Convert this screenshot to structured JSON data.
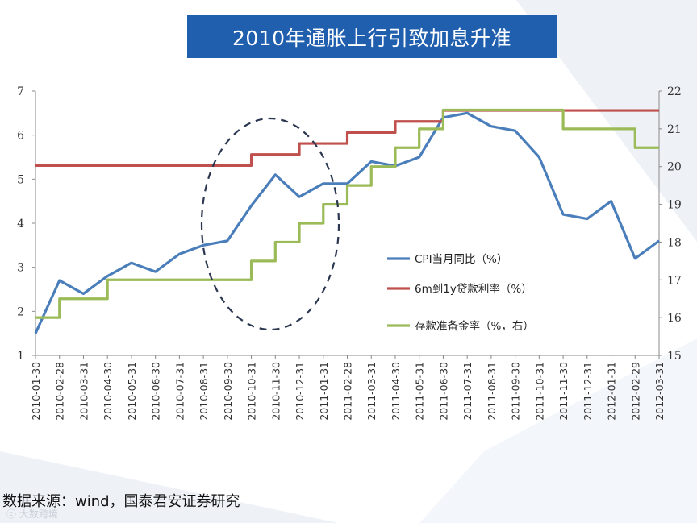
{
  "title": "2010年通胀上行引致加息升准",
  "source": "数据来源：wind，国泰君安证券研究",
  "watermark": "ⓒ 大数跨境",
  "colors": {
    "title_bg": "#1f5fae",
    "cpi": "#4a7ebb",
    "rate": "#c0504d",
    "rrr": "#9bbb59",
    "ellipse": "#2b3750"
  },
  "chart_data": {
    "type": "line",
    "categories": [
      "2010-01-30",
      "2010-02-28",
      "2010-03-31",
      "2010-04-30",
      "2010-05-31",
      "2010-06-30",
      "2010-07-31",
      "2010-08-31",
      "2010-09-30",
      "2010-10-31",
      "2010-11-30",
      "2010-12-31",
      "2011-01-31",
      "2011-02-28",
      "2011-03-31",
      "2011-04-30",
      "2011-05-31",
      "2011-06-30",
      "2011-07-31",
      "2011-08-31",
      "2011-09-30",
      "2011-10-31",
      "2011-11-30",
      "2011-12-31",
      "2012-01-31",
      "2012-02-29",
      "2012-03-31"
    ],
    "y_left": {
      "min": 1,
      "max": 7,
      "ticks": [
        "1",
        "2",
        "3",
        "4",
        "5",
        "6",
        "7"
      ]
    },
    "y_right": {
      "min": 15,
      "max": 22,
      "ticks": [
        "15",
        "16",
        "17",
        "18",
        "19",
        "20",
        "21",
        "22"
      ]
    },
    "series": [
      {
        "name": "CPI当月同比（%）",
        "axis": "left",
        "color": "#4a7ebb",
        "step": false,
        "values": [
          1.5,
          2.7,
          2.4,
          2.8,
          3.1,
          2.9,
          3.3,
          3.5,
          3.6,
          4.4,
          5.1,
          4.6,
          4.9,
          4.9,
          5.4,
          5.3,
          5.5,
          6.4,
          6.5,
          6.2,
          6.1,
          5.5,
          4.2,
          4.1,
          4.5,
          3.2,
          3.6
        ]
      },
      {
        "name": "6m到1y贷款利率（%）",
        "axis": "left",
        "color": "#c0504d",
        "step": true,
        "values": [
          5.31,
          5.31,
          5.31,
          5.31,
          5.31,
          5.31,
          5.31,
          5.31,
          5.31,
          5.56,
          5.56,
          5.81,
          5.81,
          6.06,
          6.06,
          6.31,
          6.31,
          6.56,
          6.56,
          6.56,
          6.56,
          6.56,
          6.56,
          6.56,
          6.56,
          6.56,
          6.56
        ]
      },
      {
        "name": "存款准备金率（%，右）",
        "axis": "right",
        "color": "#9bbb59",
        "step": true,
        "values": [
          16,
          16.5,
          16.5,
          17,
          17,
          17,
          17,
          17,
          17,
          17.5,
          18,
          18.5,
          19,
          19.5,
          20,
          20.5,
          21,
          21.5,
          21.5,
          21.5,
          21.5,
          21.5,
          21,
          21,
          21,
          20.5,
          20.5
        ]
      }
    ],
    "legend_position": "bottom-right",
    "annotation": "dashed ellipse highlighting 2010-09 to 2011-01"
  }
}
